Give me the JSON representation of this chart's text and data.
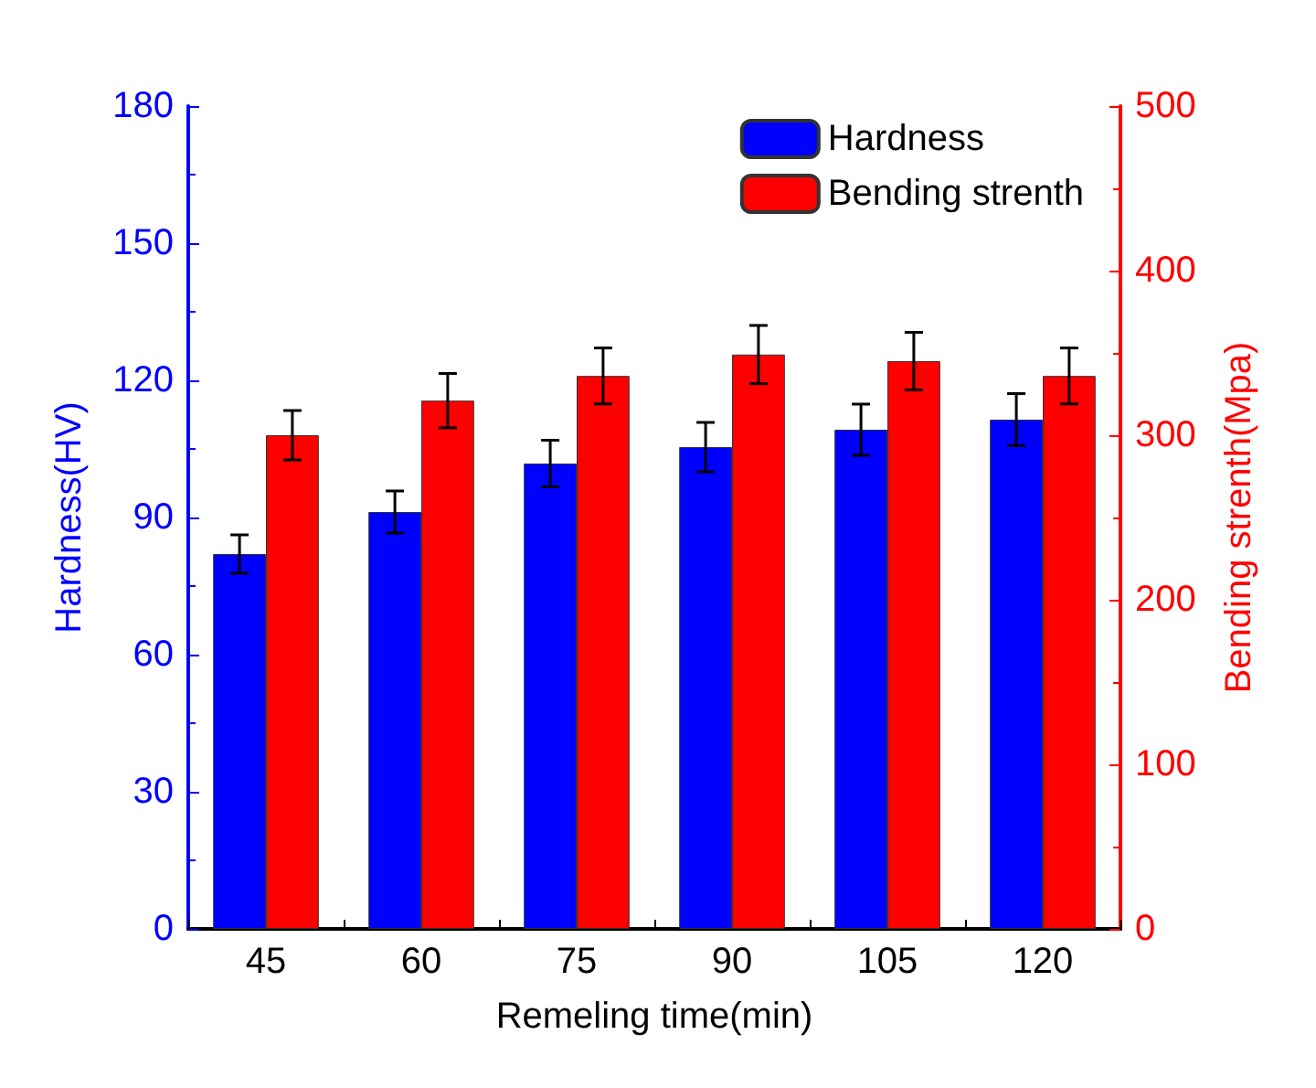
{
  "chart_data": {
    "type": "bar",
    "categories": [
      "45",
      "60",
      "75",
      "90",
      "105",
      "120"
    ],
    "xlabel": "Remeling time(min)",
    "ylabel": "Hardness(HV)",
    "y2label": "Bending strenth(Mpa)",
    "series": [
      {
        "name": "Hardness",
        "color": "#0000ff",
        "values": [
          82,
          91.2,
          101.8,
          105.4,
          109.2,
          111.4
        ],
        "errors": [
          4.2,
          4.6,
          5.1,
          5.4,
          5.6,
          5.7
        ]
      },
      {
        "name": "Bending strenth",
        "color": "#ff0000",
        "axis": "y2",
        "values": [
          300,
          321,
          336,
          349,
          345,
          336
        ],
        "errors": [
          15,
          16.5,
          17,
          17.7,
          17.5,
          17
        ]
      }
    ],
    "ylim": [
      0,
      180
    ],
    "yticks": [
      0,
      30,
      60,
      90,
      120,
      150,
      180
    ],
    "y2lim": [
      0,
      500
    ],
    "y2ticks": [
      0,
      100,
      200,
      300,
      400,
      500
    ],
    "grid": false,
    "legend": "top right"
  }
}
